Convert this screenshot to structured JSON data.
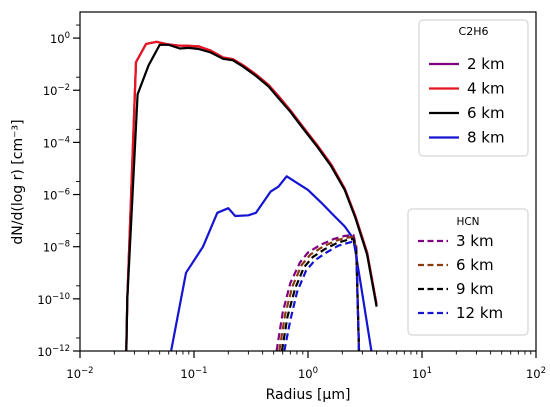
{
  "chart_data": {
    "type": "line",
    "xlabel": "Radius [μm]",
    "ylabel": "dN/d(log r) [cm⁻³]",
    "xscale": "log",
    "yscale": "log",
    "xlim": [
      0.01,
      100
    ],
    "ylim": [
      1e-12,
      10
    ],
    "x_ticks": [
      {
        "value": 0.01,
        "base": "10",
        "exp": "−2"
      },
      {
        "value": 0.1,
        "base": "10",
        "exp": "−1"
      },
      {
        "value": 1,
        "base": "10",
        "exp": "0"
      },
      {
        "value": 10,
        "base": "10",
        "exp": "1"
      },
      {
        "value": 100,
        "base": "10",
        "exp": "2"
      }
    ],
    "y_ticks": [
      {
        "value": 1e-12,
        "base": "10",
        "exp": "−12"
      },
      {
        "value": 1e-10,
        "base": "10",
        "exp": "−10"
      },
      {
        "value": 1e-08,
        "base": "10",
        "exp": "−8"
      },
      {
        "value": 1e-06,
        "base": "10",
        "exp": "−6"
      },
      {
        "value": 0.0001,
        "base": "10",
        "exp": "−4"
      },
      {
        "value": 0.01,
        "base": "10",
        "exp": "−2"
      },
      {
        "value": 1,
        "base": "10",
        "exp": "0"
      }
    ],
    "legends": [
      {
        "title": "C2H6",
        "placement": "upper-right",
        "entries": [
          {
            "label": "2 km",
            "color": "#800080",
            "dash": "solid"
          },
          {
            "label": "4 km",
            "color": "#e8141e",
            "dash": "solid"
          },
          {
            "label": "6 km",
            "color": "#000000",
            "dash": "solid"
          },
          {
            "label": "8 km",
            "color": "#1414d2",
            "dash": "solid"
          }
        ]
      },
      {
        "title": "HCN",
        "placement": "lower-right",
        "entries": [
          {
            "label": "3 km",
            "color": "#800080",
            "dash": "dashed"
          },
          {
            "label": "6 km",
            "color": "#8b3a0f",
            "dash": "dashed"
          },
          {
            "label": "9 km",
            "color": "#000000",
            "dash": "dashed"
          },
          {
            "label": "12 km",
            "color": "#1414d2",
            "dash": "dashed"
          }
        ]
      }
    ],
    "series": [
      {
        "group": "C2H6",
        "name": "2 km",
        "color": "#800080",
        "dash": "solid",
        "points": [
          [
            0.0255,
            1e-12
          ],
          [
            0.026,
            1e-10
          ],
          [
            0.031,
            0.12
          ],
          [
            0.038,
            0.6
          ],
          [
            0.047,
            0.72
          ],
          [
            0.058,
            0.58
          ],
          [
            0.072,
            0.52
          ],
          [
            0.09,
            0.5
          ],
          [
            0.11,
            0.48
          ],
          [
            0.14,
            0.33
          ],
          [
            0.18,
            0.18
          ],
          [
            0.22,
            0.155
          ],
          [
            0.27,
            0.09
          ],
          [
            0.35,
            0.04
          ],
          [
            0.45,
            0.016
          ],
          [
            0.55,
            0.006
          ],
          [
            0.7,
            0.0017
          ],
          [
            0.9,
            0.0004
          ],
          [
            1.2,
            8e-05
          ],
          [
            1.6,
            1.4e-05
          ],
          [
            2.1,
            1.7e-06
          ],
          [
            2.6,
            1.5e-07
          ],
          [
            3.3,
            6e-09
          ],
          [
            4.0,
            6e-11
          ]
        ]
      },
      {
        "group": "C2H6",
        "name": "4 km",
        "color": "#e8141e",
        "dash": "solid",
        "points": [
          [
            0.0255,
            1e-12
          ],
          [
            0.026,
            1e-10
          ],
          [
            0.031,
            0.12
          ],
          [
            0.038,
            0.6
          ],
          [
            0.047,
            0.72
          ],
          [
            0.058,
            0.58
          ],
          [
            0.072,
            0.52
          ],
          [
            0.09,
            0.5
          ],
          [
            0.11,
            0.48
          ],
          [
            0.14,
            0.33
          ],
          [
            0.18,
            0.18
          ],
          [
            0.22,
            0.155
          ],
          [
            0.27,
            0.09
          ],
          [
            0.35,
            0.04
          ],
          [
            0.45,
            0.016
          ],
          [
            0.55,
            0.006
          ],
          [
            0.7,
            0.0017
          ],
          [
            0.9,
            0.0004
          ],
          [
            1.2,
            8e-05
          ],
          [
            1.6,
            1.4e-05
          ],
          [
            2.1,
            1.7e-06
          ],
          [
            2.6,
            1.5e-07
          ],
          [
            3.3,
            6e-09
          ],
          [
            4.0,
            6e-11
          ]
        ]
      },
      {
        "group": "C2H6",
        "name": "6 km",
        "color": "#000000",
        "dash": "solid",
        "points": [
          [
            0.0255,
            1e-12
          ],
          [
            0.026,
            1e-10
          ],
          [
            0.032,
            0.007
          ],
          [
            0.04,
            0.09
          ],
          [
            0.05,
            0.55
          ],
          [
            0.06,
            0.55
          ],
          [
            0.075,
            0.4
          ],
          [
            0.09,
            0.42
          ],
          [
            0.11,
            0.38
          ],
          [
            0.14,
            0.28
          ],
          [
            0.18,
            0.16
          ],
          [
            0.22,
            0.14
          ],
          [
            0.27,
            0.08
          ],
          [
            0.35,
            0.035
          ],
          [
            0.45,
            0.014
          ],
          [
            0.55,
            0.005
          ],
          [
            0.7,
            0.0015
          ],
          [
            0.9,
            0.00035
          ],
          [
            1.2,
            7e-05
          ],
          [
            1.6,
            1.2e-05
          ],
          [
            2.1,
            1.5e-06
          ],
          [
            2.6,
            1.3e-07
          ],
          [
            3.3,
            5e-09
          ],
          [
            4.0,
            5e-11
          ]
        ]
      },
      {
        "group": "C2H6",
        "name": "8 km",
        "color": "#1414d2",
        "dash": "solid",
        "points": [
          [
            0.063,
            1e-12
          ],
          [
            0.085,
            1e-09
          ],
          [
            0.12,
            1e-08
          ],
          [
            0.16,
            2e-07
          ],
          [
            0.2,
            3e-07
          ],
          [
            0.23,
            1.5e-07
          ],
          [
            0.3,
            1.6e-07
          ],
          [
            0.35,
            2e-07
          ],
          [
            0.47,
            1.3e-06
          ],
          [
            0.55,
            2e-06
          ],
          [
            0.65,
            5e-06
          ],
          [
            0.8,
            2.8e-06
          ],
          [
            1.0,
            1.5e-06
          ],
          [
            1.3,
            5e-07
          ],
          [
            1.7,
            1.5e-07
          ],
          [
            2.1,
            6e-08
          ],
          [
            2.5,
            2e-08
          ],
          [
            3.0,
            1.5e-10
          ],
          [
            3.6,
            1e-12
          ]
        ]
      },
      {
        "group": "HCN",
        "name": "3 km",
        "color": "#800080",
        "dash": "dashed",
        "points": [
          [
            0.53,
            1e-12
          ],
          [
            0.6,
            3e-11
          ],
          [
            0.7,
            4e-10
          ],
          [
            0.85,
            2.5e-09
          ],
          [
            1.0,
            6e-09
          ],
          [
            1.3,
            1.2e-08
          ],
          [
            1.7,
            2e-08
          ],
          [
            2.1,
            2.6e-08
          ],
          [
            2.5,
            2.8e-08
          ],
          [
            2.65,
            1e-08
          ],
          [
            2.8,
            1e-12
          ]
        ]
      },
      {
        "group": "HCN",
        "name": "6 km",
        "color": "#8b3a0f",
        "dash": "dashed",
        "points": [
          [
            0.56,
            1e-12
          ],
          [
            0.63,
            2.5e-11
          ],
          [
            0.73,
            3e-10
          ],
          [
            0.88,
            2e-09
          ],
          [
            1.05,
            5e-09
          ],
          [
            1.35,
            1e-08
          ],
          [
            1.75,
            1.7e-08
          ],
          [
            2.15,
            2.2e-08
          ],
          [
            2.5,
            2.4e-08
          ],
          [
            2.65,
            8e-09
          ],
          [
            2.8,
            1e-12
          ]
        ]
      },
      {
        "group": "HCN",
        "name": "9 km",
        "color": "#000000",
        "dash": "dashed",
        "points": [
          [
            0.59,
            1e-12
          ],
          [
            0.66,
            2e-11
          ],
          [
            0.77,
            2.5e-10
          ],
          [
            0.92,
            1.6e-09
          ],
          [
            1.1,
            4e-09
          ],
          [
            1.4,
            8e-09
          ],
          [
            1.8,
            1.4e-08
          ],
          [
            2.2,
            1.8e-08
          ],
          [
            2.5,
            2e-08
          ],
          [
            2.65,
            7e-09
          ],
          [
            2.8,
            1e-12
          ]
        ]
      },
      {
        "group": "HCN",
        "name": "12 km",
        "color": "#1414d2",
        "dash": "dashed",
        "points": [
          [
            0.62,
            1e-12
          ],
          [
            0.7,
            1.5e-11
          ],
          [
            0.8,
            1.8e-10
          ],
          [
            0.96,
            1.2e-09
          ],
          [
            1.15,
            3e-09
          ],
          [
            1.45,
            6e-09
          ],
          [
            1.85,
            1.1e-08
          ],
          [
            2.25,
            1.4e-08
          ],
          [
            2.5,
            1.6e-08
          ],
          [
            2.65,
            6e-09
          ],
          [
            2.8,
            1e-12
          ]
        ]
      }
    ]
  }
}
